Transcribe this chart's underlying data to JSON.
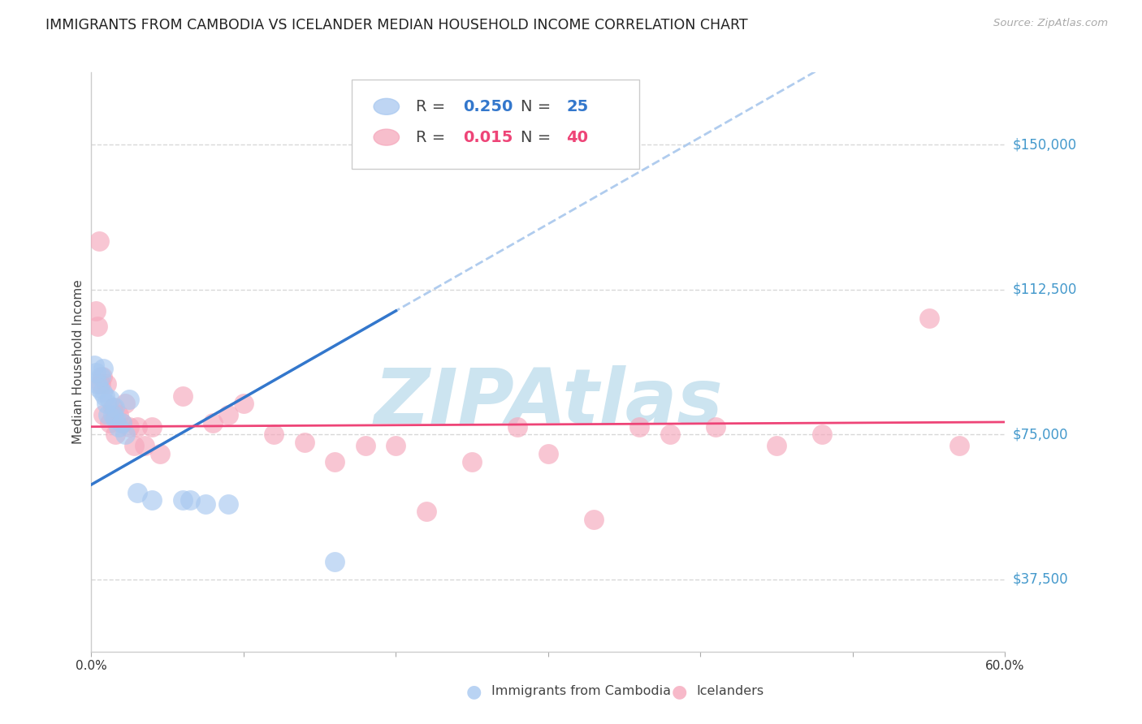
{
  "title": "IMMIGRANTS FROM CAMBODIA VS ICELANDER MEDIAN HOUSEHOLD INCOME CORRELATION CHART",
  "source": "Source: ZipAtlas.com",
  "ylabel": "Median Household Income",
  "ytick_values": [
    37500,
    75000,
    112500,
    150000
  ],
  "ytick_labels": [
    "$37,500",
    "$75,000",
    "$112,500",
    "$150,000"
  ],
  "xlim": [
    0.0,
    0.6
  ],
  "ylim": [
    18750,
    168750
  ],
  "legend_blue_R": "0.250",
  "legend_blue_N": "25",
  "legend_pink_R": "0.015",
  "legend_pink_N": "40",
  "legend_blue_label": "Immigrants from Cambodia",
  "legend_pink_label": "Icelanders",
  "blue_color": "#a8c8f0",
  "pink_color": "#f5a8bc",
  "blue_line_color": "#3377cc",
  "pink_line_color": "#ee4477",
  "blue_dashed_color": "#b0ccee",
  "watermark_color": "#cce4f0",
  "grid_color": "#d8d8d8",
  "background_color": "#ffffff",
  "title_fontsize": 12.5,
  "tick_color": "#4499cc",
  "blue_scatter_x": [
    0.002,
    0.003,
    0.004,
    0.005,
    0.006,
    0.007,
    0.008,
    0.009,
    0.01,
    0.011,
    0.012,
    0.014,
    0.015,
    0.016,
    0.018,
    0.02,
    0.022,
    0.025,
    0.03,
    0.04,
    0.06,
    0.065,
    0.075,
    0.09,
    0.16
  ],
  "blue_scatter_y": [
    93000,
    91000,
    88000,
    87000,
    90000,
    86000,
    92000,
    85000,
    83000,
    80000,
    84000,
    80000,
    82000,
    79000,
    77000,
    78000,
    75000,
    84000,
    60000,
    58000,
    58000,
    58000,
    57000,
    57000,
    42000
  ],
  "pink_scatter_x": [
    0.003,
    0.004,
    0.005,
    0.006,
    0.007,
    0.008,
    0.01,
    0.012,
    0.014,
    0.016,
    0.018,
    0.02,
    0.022,
    0.025,
    0.028,
    0.03,
    0.035,
    0.04,
    0.045,
    0.06,
    0.08,
    0.09,
    0.1,
    0.12,
    0.14,
    0.16,
    0.18,
    0.2,
    0.22,
    0.25,
    0.28,
    0.3,
    0.33,
    0.36,
    0.38,
    0.41,
    0.45,
    0.48,
    0.55,
    0.57
  ],
  "pink_scatter_y": [
    107000,
    103000,
    125000,
    88000,
    90000,
    80000,
    88000,
    78000,
    82000,
    75000,
    80000,
    78000,
    83000,
    77000,
    72000,
    77000,
    72000,
    77000,
    70000,
    85000,
    78000,
    80000,
    83000,
    75000,
    73000,
    68000,
    72000,
    72000,
    55000,
    68000,
    77000,
    70000,
    53000,
    77000,
    75000,
    77000,
    72000,
    75000,
    105000,
    72000
  ],
  "blue_line_intercept": 62000,
  "blue_line_slope": 225000,
  "pink_line_intercept": 77000,
  "pink_line_slope": 2000
}
